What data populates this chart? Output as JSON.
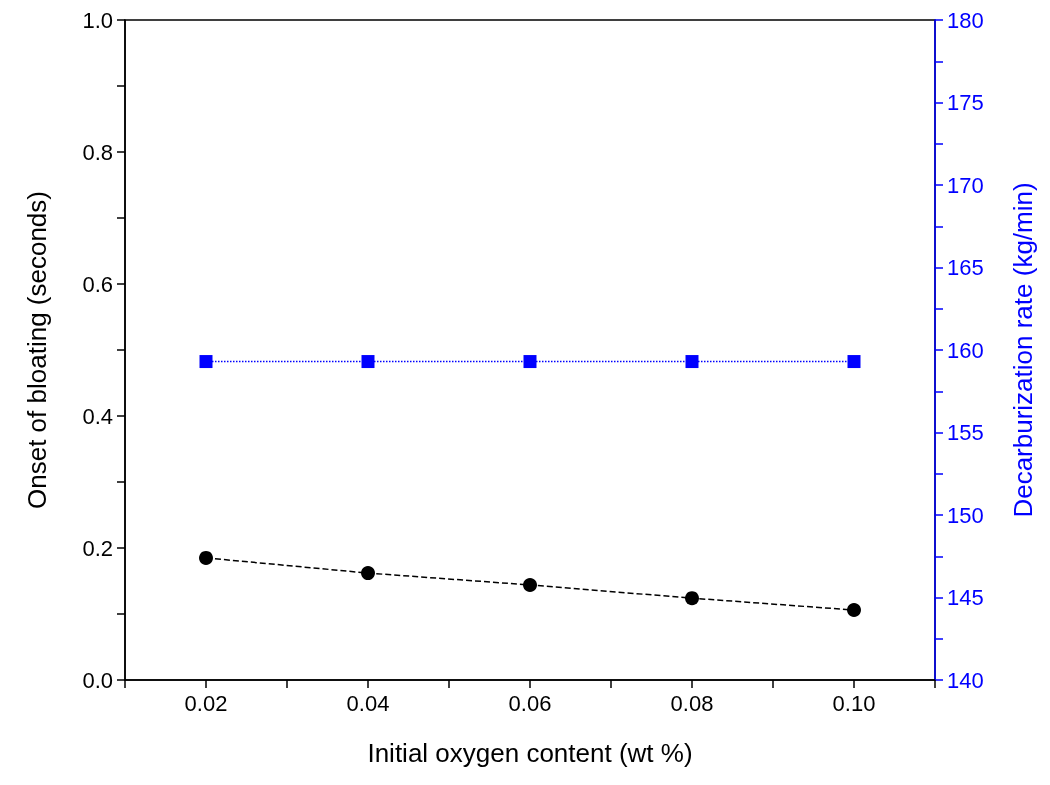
{
  "chart_data": {
    "type": "line",
    "xlabel": "Initial oxygen content (wt %)",
    "ylabel": "Onset of bloating (seconds)",
    "y2label": "Decarburization rate (kg/min)",
    "x": [
      0.02,
      0.04,
      0.06,
      0.08,
      0.1
    ],
    "series": [
      {
        "color": "#000000",
        "values": [
          0.185,
          0.162,
          0.144,
          0.124,
          0.106
        ],
        "marker": "circle",
        "line_style": "dashed"
      },
      {
        "color": "#0000ff",
        "values": [
          159.3,
          159.3,
          159.3,
          159.3,
          159.3
        ],
        "marker": "square",
        "line_style": "dotted",
        "axis": "y2"
      }
    ],
    "xlim": [
      0.01,
      0.11
    ],
    "xticks": [
      {
        "value": 0.01,
        "label": null
      },
      0.02,
      {
        "value": 0.03,
        "label": null
      },
      0.04,
      {
        "value": 0.05,
        "label": null
      },
      0.06,
      {
        "value": 0.07,
        "label": null
      },
      0.08,
      {
        "value": 0.09,
        "label": null
      },
      {
        "value": 0.1,
        "label": "0.10"
      },
      {
        "value": 0.11,
        "label": null
      }
    ],
    "ylim": [
      0,
      1
    ],
    "yticks": [
      {
        "value": 0,
        "label": "0.0"
      },
      {
        "value": 0.1,
        "label": null
      },
      0.2,
      {
        "value": 0.3,
        "label": null
      },
      0.4,
      {
        "value": 0.5,
        "label": null
      },
      0.6,
      {
        "value": 0.7,
        "label": null
      },
      0.8,
      {
        "value": 0.9,
        "label": null
      },
      {
        "value": 1,
        "label": "1.0"
      }
    ],
    "y2lim": [
      140,
      180
    ],
    "y2ticks": [
      140,
      {
        "value": 142.5,
        "label": null
      },
      145,
      {
        "value": 147.5,
        "label": null
      },
      150,
      {
        "value": 152.5,
        "label": null
      },
      155,
      {
        "value": 157.5,
        "label": null
      },
      160,
      {
        "value": 162.5,
        "label": null
      },
      165,
      {
        "value": 167.5,
        "label": null
      },
      170,
      {
        "value": 172.5,
        "label": null
      },
      175,
      {
        "value": 177.5,
        "label": null
      },
      180
    ],
    "grid": false
  }
}
